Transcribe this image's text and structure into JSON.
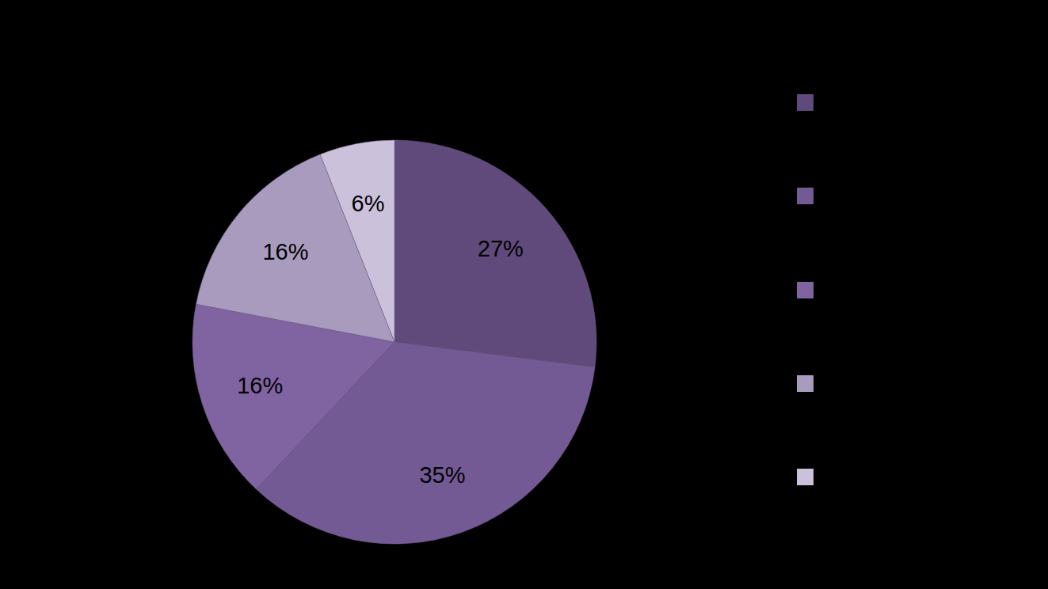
{
  "chart_data": {
    "type": "pie",
    "values": [
      27,
      35,
      16,
      16,
      6
    ],
    "value_labels": [
      "27%",
      "35%",
      "16%",
      "16%",
      "6%"
    ],
    "colors": [
      "#604a7b",
      "#735a94",
      "#8064a2",
      "#a99bbd",
      "#ccc1da"
    ],
    "data_labels": true,
    "legend": "right"
  }
}
